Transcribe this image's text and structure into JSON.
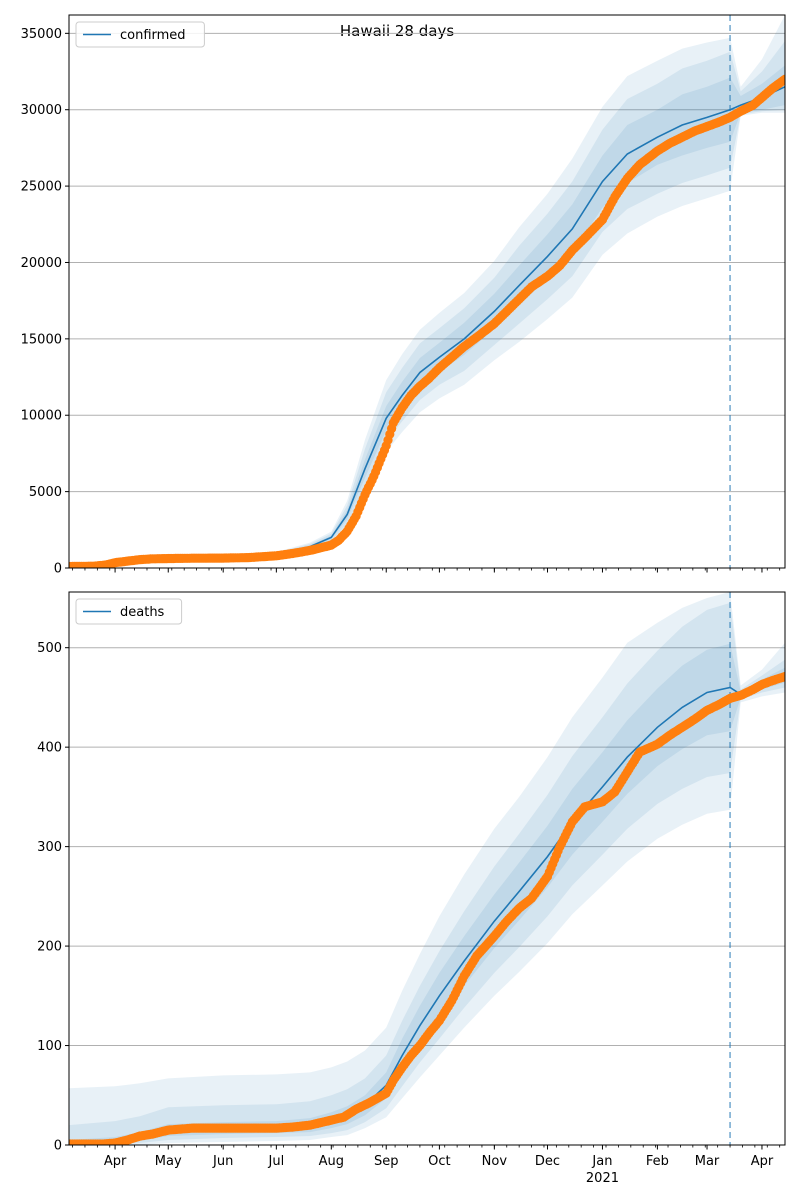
{
  "figure": {
    "title": "Hawaii 28 days"
  },
  "colors": {
    "model_line": "#1f77b4",
    "observed": "#ff7f0e",
    "band": "#1f77b4",
    "grid": "#b0b0b0",
    "forecast_marker": "#1f77b4"
  },
  "chart_data": [
    {
      "type": "line",
      "legend": "confirmed",
      "legend_position": "top-left",
      "x_axis": "date",
      "xlim": [
        "2020-03-06",
        "2021-04-14"
      ],
      "ylim": [
        0,
        36200
      ],
      "y_ticks": [
        0,
        5000,
        10000,
        15000,
        20000,
        25000,
        30000,
        35000
      ],
      "grid": "horizontal",
      "x_tick_labels": [
        {
          "date": "2020-04-01",
          "label": "Apr"
        },
        {
          "date": "2020-05-01",
          "label": "May"
        },
        {
          "date": "2020-06-01",
          "label": "Jun"
        },
        {
          "date": "2020-07-01",
          "label": "Jul"
        },
        {
          "date": "2020-08-01",
          "label": "Aug"
        },
        {
          "date": "2020-09-01",
          "label": "Sep"
        },
        {
          "date": "2020-10-01",
          "label": "Oct"
        },
        {
          "date": "2020-11-01",
          "label": "Nov"
        },
        {
          "date": "2020-12-01",
          "label": "Dec"
        },
        {
          "date": "2021-01-01",
          "label": "Jan"
        },
        {
          "date": "2021-02-01",
          "label": "Feb"
        },
        {
          "date": "2021-03-01",
          "label": "Mar"
        },
        {
          "date": "2021-04-01",
          "label": "Apr"
        }
      ],
      "year_label": {
        "date": "2021-01-01",
        "label": "2021"
      },
      "forecast_start": "2021-03-14",
      "model": {
        "dates": [
          "2020-03-06",
          "2020-04-01",
          "2020-05-01",
          "2020-06-01",
          "2020-07-01",
          "2020-07-20",
          "2020-08-01",
          "2020-08-10",
          "2020-08-20",
          "2020-09-01",
          "2020-09-10",
          "2020-09-20",
          "2020-10-01",
          "2020-10-15",
          "2020-11-01",
          "2020-11-15",
          "2020-12-01",
          "2020-12-15",
          "2021-01-01",
          "2021-01-15",
          "2021-02-01",
          "2021-02-15",
          "2021-03-01",
          "2021-03-14",
          "2021-03-20",
          "2021-04-01",
          "2021-04-14"
        ],
        "center": [
          100,
          400,
          600,
          700,
          900,
          1400,
          2000,
          3500,
          6500,
          9800,
          11300,
          12800,
          13800,
          15000,
          16800,
          18500,
          20400,
          22200,
          25300,
          27100,
          28200,
          29000,
          29500,
          30000,
          30300,
          30800,
          31500
        ],
        "b1_lo": [
          100,
          380,
          570,
          665,
          850,
          1320,
          1880,
          3200,
          5900,
          9000,
          10400,
          11850,
          12850,
          13950,
          15650,
          17200,
          18950,
          20600,
          23600,
          25200,
          26400,
          27000,
          27500,
          27900,
          29800,
          30000,
          30300
        ],
        "b1_hi": [
          100,
          420,
          630,
          735,
          950,
          1480,
          2120,
          3800,
          7100,
          10600,
          12200,
          13750,
          14750,
          16050,
          17950,
          19800,
          21850,
          23800,
          27000,
          29000,
          30000,
          31000,
          31500,
          32100,
          30900,
          31700,
          32900
        ],
        "b2_lo": [
          100,
          350,
          540,
          630,
          800,
          1230,
          1760,
          2900,
          5300,
          8300,
          9600,
          11000,
          12000,
          12900,
          14600,
          16000,
          17600,
          19100,
          22000,
          23500,
          24500,
          25200,
          25700,
          26200,
          29700,
          29900,
          30000
        ],
        "b2_hi": [
          100,
          450,
          660,
          770,
          1000,
          1570,
          2250,
          4100,
          7800,
          11500,
          13100,
          14700,
          15700,
          17000,
          19000,
          21100,
          23200,
          25300,
          28700,
          30700,
          31700,
          32700,
          33200,
          33800,
          31200,
          32500,
          34500
        ],
        "b3_lo": [
          100,
          320,
          510,
          590,
          750,
          1140,
          1640,
          2600,
          4800,
          7600,
          8900,
          10200,
          11100,
          12000,
          13600,
          14800,
          16300,
          17700,
          20500,
          21900,
          23000,
          23700,
          24200,
          24700,
          29600,
          29800,
          29800
        ],
        "b3_hi": [
          100,
          480,
          690,
          810,
          1050,
          1660,
          2380,
          4400,
          8400,
          12300,
          14000,
          15600,
          16700,
          18000,
          20100,
          22300,
          24500,
          26800,
          30200,
          32200,
          33200,
          34000,
          34400,
          34700,
          31500,
          33300,
          36200
        ]
      },
      "observed": {
        "dates": [
          "2020-03-06",
          "2020-03-20",
          "2020-03-27",
          "2020-04-01",
          "2020-04-08",
          "2020-04-15",
          "2020-04-22",
          "2020-05-01",
          "2020-05-15",
          "2020-06-01",
          "2020-06-15",
          "2020-07-01",
          "2020-07-10",
          "2020-07-20",
          "2020-07-27",
          "2020-08-01",
          "2020-08-05",
          "2020-08-10",
          "2020-08-15",
          "2020-08-20",
          "2020-08-25",
          "2020-09-01",
          "2020-09-05",
          "2020-09-10",
          "2020-09-15",
          "2020-09-20",
          "2020-09-25",
          "2020-10-01",
          "2020-10-08",
          "2020-10-15",
          "2020-10-22",
          "2020-11-01",
          "2020-11-08",
          "2020-11-15",
          "2020-11-22",
          "2020-12-01",
          "2020-12-08",
          "2020-12-15",
          "2020-12-22",
          "2021-01-01",
          "2021-01-08",
          "2021-01-15",
          "2021-01-22",
          "2021-02-01",
          "2021-02-08",
          "2021-02-15",
          "2021-02-22",
          "2021-03-01",
          "2021-03-08",
          "2021-03-14",
          "2021-03-20",
          "2021-03-27",
          "2021-04-01",
          "2021-04-07",
          "2021-04-14"
        ],
        "values": [
          100,
          120,
          200,
          350,
          450,
          550,
          600,
          620,
          640,
          650,
          680,
          800,
          950,
          1150,
          1350,
          1500,
          1800,
          2400,
          3400,
          4800,
          6000,
          8000,
          9500,
          10500,
          11300,
          11900,
          12400,
          13100,
          13800,
          14500,
          15100,
          16000,
          16800,
          17600,
          18400,
          19100,
          19800,
          20800,
          21600,
          22800,
          24300,
          25500,
          26400,
          27300,
          27800,
          28200,
          28600,
          28900,
          29200,
          29500,
          29900,
          30300,
          30800,
          31400,
          32000
        ]
      }
    },
    {
      "type": "line",
      "legend": "deaths",
      "legend_position": "top-left",
      "x_axis": "date",
      "xlim": [
        "2020-03-06",
        "2021-04-14"
      ],
      "ylim": [
        0,
        556
      ],
      "y_ticks": [
        0,
        100,
        200,
        300,
        400,
        500
      ],
      "grid": "horizontal",
      "forecast_start": "2021-03-14",
      "model": {
        "dates": [
          "2020-03-06",
          "2020-04-01",
          "2020-04-15",
          "2020-05-01",
          "2020-06-01",
          "2020-07-01",
          "2020-07-20",
          "2020-08-01",
          "2020-08-10",
          "2020-08-20",
          "2020-09-01",
          "2020-09-10",
          "2020-09-20",
          "2020-10-01",
          "2020-10-15",
          "2020-11-01",
          "2020-11-15",
          "2020-12-01",
          "2020-12-15",
          "2021-01-01",
          "2021-01-15",
          "2021-02-01",
          "2021-02-15",
          "2021-03-01",
          "2021-03-14",
          "2021-03-20",
          "2021-04-01",
          "2021-04-14"
        ],
        "center": [
          1,
          3,
          8,
          15,
          17,
          18,
          20,
          25,
          30,
          40,
          60,
          90,
          120,
          150,
          185,
          225,
          255,
          290,
          325,
          360,
          390,
          420,
          440,
          455,
          460,
          453,
          463,
          472
        ],
        "b1_lo": [
          0,
          1,
          4,
          9,
          11,
          12,
          13,
          17,
          21,
          30,
          47,
          73,
          100,
          127,
          160,
          198,
          226,
          259,
          292,
          325,
          353,
          381,
          398,
          412,
          416,
          450,
          458,
          465
        ],
        "b1_hi": [
          5,
          8,
          13,
          21,
          23,
          24,
          27,
          33,
          39,
          50,
          73,
          107,
          140,
          173,
          210,
          252,
          284,
          321,
          358,
          395,
          427,
          459,
          482,
          498,
          504,
          456,
          468,
          480
        ],
        "b2_lo": [
          0,
          0,
          2,
          5,
          7,
          8,
          9,
          12,
          15,
          23,
          37,
          59,
          83,
          107,
          138,
          173,
          199,
          230,
          261,
          292,
          318,
          343,
          358,
          370,
          374,
          448,
          455,
          460
        ],
        "b2_hi": [
          20,
          24,
          29,
          38,
          40,
          41,
          44,
          50,
          56,
          67,
          90,
          125,
          160,
          195,
          235,
          280,
          313,
          352,
          391,
          430,
          464,
          497,
          521,
          538,
          545,
          458,
          472,
          488
        ],
        "b3_lo": [
          0,
          0,
          0,
          2,
          3,
          4,
          5,
          8,
          10,
          17,
          28,
          47,
          68,
          90,
          118,
          150,
          174,
          203,
          232,
          261,
          285,
          308,
          322,
          333,
          337,
          445,
          451,
          455
        ],
        "b3_hi": [
          57,
          59,
          62,
          67,
          70,
          71,
          73,
          78,
          84,
          95,
          118,
          155,
          192,
          230,
          272,
          318,
          350,
          390,
          430,
          470,
          505,
          525,
          540,
          550,
          556,
          462,
          478,
          505
        ]
      },
      "observed": {
        "dates": [
          "2020-03-06",
          "2020-03-25",
          "2020-04-01",
          "2020-04-08",
          "2020-04-15",
          "2020-04-22",
          "2020-05-01",
          "2020-05-15",
          "2020-06-01",
          "2020-06-15",
          "2020-07-01",
          "2020-07-10",
          "2020-07-20",
          "2020-08-01",
          "2020-08-08",
          "2020-08-15",
          "2020-08-22",
          "2020-09-01",
          "2020-09-05",
          "2020-09-10",
          "2020-09-15",
          "2020-09-20",
          "2020-09-25",
          "2020-10-01",
          "2020-10-08",
          "2020-10-15",
          "2020-10-22",
          "2020-11-01",
          "2020-11-08",
          "2020-11-15",
          "2020-11-22",
          "2020-12-01",
          "2020-12-08",
          "2020-12-15",
          "2020-12-22",
          "2021-01-01",
          "2021-01-08",
          "2021-01-15",
          "2021-01-22",
          "2021-02-01",
          "2021-02-08",
          "2021-02-15",
          "2021-02-22",
          "2021-03-01",
          "2021-03-08",
          "2021-03-14",
          "2021-03-20",
          "2021-03-27",
          "2021-04-01",
          "2021-04-07",
          "2021-04-14"
        ],
        "values": [
          1,
          1,
          2,
          5,
          9,
          11,
          15,
          17,
          17,
          17,
          17,
          18,
          20,
          25,
          28,
          36,
          42,
          52,
          65,
          78,
          90,
          100,
          112,
          125,
          145,
          170,
          190,
          210,
          225,
          238,
          248,
          270,
          300,
          325,
          340,
          345,
          355,
          375,
          395,
          403,
          412,
          420,
          428,
          437,
          443,
          449,
          452,
          458,
          463,
          467,
          471
        ]
      }
    }
  ]
}
